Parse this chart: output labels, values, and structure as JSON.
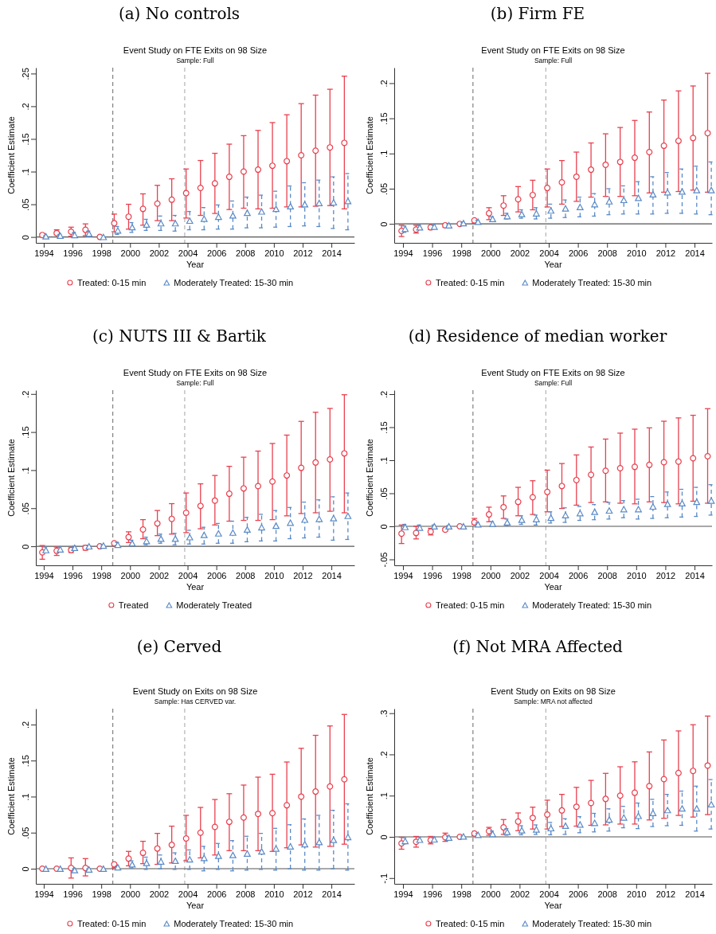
{
  "chart_data": [
    {
      "type": "scatter",
      "title": "(a) No controls",
      "subtitle": "Event Study on FTE Exits on 98 Size",
      "annotations": [
        "Sample: Full"
      ],
      "xlabel": "Year",
      "ylabel": "Coefficient Estimate",
      "xlim": [
        1993.45,
        2015.6
      ],
      "xticks": [
        1994,
        1996,
        1998,
        2000,
        2002,
        2004,
        2006,
        2008,
        2010,
        2012,
        2014
      ],
      "ylim": [
        -0.009,
        0.259
      ],
      "yticks": [
        {
          "value": 0,
          "label": "0"
        },
        {
          "value": 0.05,
          "label": ".05"
        },
        {
          "value": 0.1,
          "label": ".1"
        },
        {
          "value": 0.15,
          "label": ".15"
        },
        {
          "value": 0.2,
          "label": ".2"
        },
        {
          "value": 0.25,
          "label": ".25"
        }
      ],
      "grid": false,
      "legend": "bottom",
      "ref_lines": [
        {
          "axis": "x",
          "value": 1998.8,
          "color": "#808080",
          "line_style": "dashed"
        },
        {
          "axis": "x",
          "value": 2003.8,
          "color": "#b4b4b4",
          "line_style": "dashed"
        },
        {
          "axis": "y",
          "value": 0,
          "color": "#555555",
          "line_style": "solid"
        }
      ],
      "series": [
        {
          "name": "Treated: 0-15 min",
          "color": "#e8414f",
          "marker": "circle",
          "line_style": "solid",
          "x": [
            1993.9,
            1994.9,
            1995.9,
            1996.9,
            1997.9,
            1998.9,
            1999.9,
            2000.9,
            2001.9,
            2002.9,
            2003.9,
            2004.9,
            2005.9,
            2006.9,
            2007.9,
            2008.9,
            2009.9,
            2010.9,
            2011.9,
            2012.9,
            2013.9,
            2014.9
          ],
          "values": [
            0.003,
            0.006,
            0.008,
            0.011,
            0,
            0.021,
            0.031,
            0.043,
            0.051,
            0.057,
            0.067,
            0.075,
            0.082,
            0.092,
            0.1,
            0.103,
            0.109,
            0.116,
            0.125,
            0.132,
            0.137,
            0.144
          ],
          "errors": [
            [
              0,
              0.005
            ],
            [
              0.003,
              0.011
            ],
            [
              0.001,
              0.015
            ],
            [
              0.002,
              0.02
            ],
            null,
            [
              0.008,
              0.035
            ],
            [
              0.012,
              0.05
            ],
            [
              0.018,
              0.066
            ],
            [
              0.025,
              0.079
            ],
            [
              0.025,
              0.089
            ],
            [
              0.029,
              0.104
            ],
            [
              0.033,
              0.117
            ],
            [
              0.036,
              0.128
            ],
            [
              0.042,
              0.142
            ],
            [
              0.044,
              0.155
            ],
            [
              0.043,
              0.163
            ],
            [
              0.044,
              0.175
            ],
            [
              0.046,
              0.187
            ],
            [
              0.046,
              0.204
            ],
            [
              0.047,
              0.217
            ],
            [
              0.048,
              0.226
            ],
            [
              0.043,
              0.246
            ]
          ]
        },
        {
          "name": "Moderately Treated: 15-30 min",
          "color": "#5a8ac6",
          "marker": "triangle",
          "line_style": "dashed",
          "x": [
            1994.15,
            1995.15,
            1996.15,
            1997.15,
            1998.15,
            1999.15,
            2000.15,
            2001.15,
            2002.15,
            2003.15,
            2004.15,
            2005.15,
            2006.15,
            2007.15,
            2008.15,
            2009.15,
            2010.15,
            2011.15,
            2012.15,
            2013.15,
            2014.15,
            2015.15
          ],
          "values": [
            0.001,
            0.002,
            0.003,
            0.005,
            0,
            0.01,
            0.015,
            0.019,
            0.021,
            0.021,
            0.025,
            0.028,
            0.031,
            0.033,
            0.037,
            0.039,
            0.043,
            0.047,
            0.05,
            0.052,
            0.053,
            0.055
          ],
          "errors": [
            [
              0,
              0.002
            ],
            [
              0,
              0.004
            ],
            [
              0,
              0.007
            ],
            [
              0.001,
              0.009
            ],
            null,
            [
              0.004,
              0.016
            ],
            [
              0.007,
              0.022
            ],
            [
              0.01,
              0.027
            ],
            [
              0.01,
              0.032
            ],
            [
              0.009,
              0.033
            ],
            [
              0.011,
              0.039
            ],
            [
              0.011,
              0.045
            ],
            [
              0.012,
              0.049
            ],
            [
              0.012,
              0.055
            ],
            [
              0.014,
              0.061
            ],
            [
              0.014,
              0.064
            ],
            [
              0.015,
              0.07
            ],
            [
              0.016,
              0.078
            ],
            [
              0.017,
              0.083
            ],
            [
              0.016,
              0.087
            ],
            [
              0.013,
              0.092
            ],
            [
              0.011,
              0.097
            ]
          ]
        }
      ]
    },
    {
      "type": "scatter",
      "title": "(b) Firm FE",
      "subtitle": "Event Study on FTE Exits on 98 Size",
      "annotations": [
        "Sample: Full"
      ],
      "xlabel": "Year",
      "ylabel": "Coefficient Estimate",
      "xlim": [
        1993.4,
        2015.2
      ],
      "xticks": [
        1994,
        1996,
        1998,
        2000,
        2002,
        2004,
        2006,
        2008,
        2010,
        2012,
        2014
      ],
      "ylim": [
        -0.027,
        0.222
      ],
      "yticks": [
        {
          "value": 0,
          "label": "0"
        },
        {
          "value": 0.05,
          "label": ".05"
        },
        {
          "value": 0.1,
          "label": ".1"
        },
        {
          "value": 0.15,
          "label": ".15"
        },
        {
          "value": 0.2,
          "label": ".2"
        }
      ],
      "grid": false,
      "legend": "bottom",
      "ref_lines": [
        {
          "axis": "x",
          "value": 1998.8,
          "color": "#808080",
          "line_style": "dashed"
        },
        {
          "axis": "x",
          "value": 2003.8,
          "color": "#b4b4b4",
          "line_style": "dashed"
        },
        {
          "axis": "y",
          "value": 0,
          "color": "#555555",
          "line_style": "solid"
        }
      ],
      "series": [
        {
          "name": "Treated: 0-15 min",
          "color": "#e8414f",
          "marker": "circle",
          "line_style": "solid",
          "x": [
            1993.9,
            1994.9,
            1995.9,
            1996.9,
            1997.9,
            1998.9,
            1999.9,
            2000.9,
            2001.9,
            2002.9,
            2003.9,
            2004.9,
            2005.9,
            2006.9,
            2007.9,
            2008.9,
            2009.9,
            2010.9,
            2011.9,
            2012.9,
            2013.9,
            2014.9
          ],
          "values": [
            -0.01,
            -0.008,
            -0.005,
            -0.002,
            0,
            0.005,
            0.015,
            0.026,
            0.035,
            0.041,
            0.051,
            0.059,
            0.067,
            0.077,
            0.084,
            0.088,
            0.094,
            0.102,
            0.111,
            0.118,
            0.122,
            0.129
          ],
          "errors": [
            [
              -0.018,
              -0.002
            ],
            [
              -0.013,
              -0.002
            ],
            [
              -0.008,
              -0.003
            ],
            [
              -0.005,
              0
            ],
            null,
            [
              0.001,
              0.006
            ],
            [
              0.006,
              0.023
            ],
            [
              0.012,
              0.04
            ],
            [
              0.017,
              0.053
            ],
            [
              0.02,
              0.062
            ],
            [
              0.024,
              0.078
            ],
            [
              0.028,
              0.09
            ],
            [
              0.032,
              0.102
            ],
            [
              0.038,
              0.115
            ],
            [
              0.039,
              0.128
            ],
            [
              0.039,
              0.137
            ],
            [
              0.04,
              0.147
            ],
            [
              0.044,
              0.159
            ],
            [
              0.045,
              0.176
            ],
            [
              0.046,
              0.189
            ],
            [
              0.048,
              0.196
            ],
            [
              0.045,
              0.214
            ]
          ]
        },
        {
          "name": "Moderately Treated: 15-30 min",
          "color": "#5a8ac6",
          "marker": "triangle",
          "line_style": "dashed",
          "x": [
            1994.15,
            1995.15,
            1996.15,
            1997.15,
            1998.15,
            1999.15,
            2000.15,
            2001.15,
            2002.15,
            2003.15,
            2004.15,
            2005.15,
            2006.15,
            2007.15,
            2008.15,
            2009.15,
            2010.15,
            2011.15,
            2012.15,
            2013.15,
            2014.15,
            2015.15
          ],
          "values": [
            -0.007,
            -0.005,
            -0.004,
            -0.002,
            0.001,
            0.003,
            0.007,
            0.011,
            0.014,
            0.015,
            0.019,
            0.022,
            0.024,
            0.028,
            0.032,
            0.034,
            0.037,
            0.042,
            0.045,
            0.046,
            0.048,
            0.048
          ],
          "errors": [
            [
              -0.012,
              -0.003
            ],
            [
              -0.008,
              -0.002
            ],
            [
              -0.006,
              -0.002
            ],
            [
              -0.003,
              0
            ],
            [
              0,
              0.002
            ],
            [
              0.001,
              0.005
            ],
            [
              0.005,
              0.01
            ],
            [
              0.007,
              0.015
            ],
            [
              0.008,
              0.02
            ],
            [
              0.007,
              0.023
            ],
            [
              0.008,
              0.028
            ],
            [
              0.009,
              0.034
            ],
            [
              0.01,
              0.038
            ],
            [
              0.011,
              0.043
            ],
            [
              0.013,
              0.05
            ],
            [
              0.014,
              0.054
            ],
            [
              0.014,
              0.06
            ],
            [
              0.014,
              0.067
            ],
            [
              0.015,
              0.073
            ],
            [
              0.015,
              0.078
            ],
            [
              0.014,
              0.082
            ],
            [
              0.013,
              0.088
            ]
          ]
        }
      ]
    },
    {
      "type": "scatter",
      "title": "(c) NUTS III & Bartik",
      "subtitle": "Event Study on FTE Exits on 98 Size",
      "annotations": [
        "Sample: Full"
      ],
      "xlabel": "Year",
      "ylabel": "Coefficient Estimate",
      "xlim": [
        1993.45,
        2015.6
      ],
      "xticks": [
        1994,
        1996,
        1998,
        2000,
        2002,
        2004,
        2006,
        2008,
        2010,
        2012,
        2014
      ],
      "ylim": [
        -0.025,
        0.205
      ],
      "yticks": [
        {
          "value": 0,
          "label": "0"
        },
        {
          "value": 0.05,
          "label": ".05"
        },
        {
          "value": 0.1,
          "label": ".1"
        },
        {
          "value": 0.15,
          "label": ".15"
        },
        {
          "value": 0.2,
          "label": ".2"
        }
      ],
      "grid": false,
      "legend": "bottom",
      "ref_lines": [
        {
          "axis": "x",
          "value": 1998.8,
          "color": "#808080",
          "line_style": "dashed"
        },
        {
          "axis": "x",
          "value": 2003.8,
          "color": "#b4b4b4",
          "line_style": "dashed"
        },
        {
          "axis": "y",
          "value": 0,
          "color": "#555555",
          "line_style": "solid"
        }
      ],
      "series": [
        {
          "name": "Treated",
          "color": "#e8414f",
          "marker": "circle",
          "line_style": "solid",
          "x": [
            1993.9,
            1994.9,
            1995.9,
            1996.9,
            1997.9,
            1998.9,
            1999.9,
            2000.9,
            2001.9,
            2002.9,
            2003.9,
            2004.9,
            2005.9,
            2006.9,
            2007.9,
            2008.9,
            2009.9,
            2010.9,
            2011.9,
            2012.9,
            2013.9,
            2014.9
          ],
          "values": [
            -0.008,
            -0.006,
            -0.005,
            -0.002,
            0,
            0.004,
            0.012,
            0.022,
            0.03,
            0.036,
            0.044,
            0.053,
            0.06,
            0.069,
            0.076,
            0.079,
            0.085,
            0.093,
            0.103,
            0.11,
            0.114,
            0.122
          ],
          "errors": [
            [
              -0.017,
              0.001
            ],
            [
              -0.012,
              -0.001
            ],
            [
              -0.008,
              -0.002
            ],
            [
              -0.005,
              0.001
            ],
            null,
            [
              0.001,
              0.005
            ],
            [
              0.005,
              0.019
            ],
            [
              0.01,
              0.035
            ],
            [
              0.014,
              0.047
            ],
            [
              0.016,
              0.056
            ],
            [
              0.018,
              0.07
            ],
            [
              0.023,
              0.082
            ],
            [
              0.028,
              0.093
            ],
            [
              0.033,
              0.105
            ],
            [
              0.034,
              0.117
            ],
            [
              0.034,
              0.125
            ],
            [
              0.035,
              0.135
            ],
            [
              0.04,
              0.146
            ],
            [
              0.043,
              0.164
            ],
            [
              0.044,
              0.176
            ],
            [
              0.046,
              0.181
            ],
            [
              0.044,
              0.199
            ]
          ]
        },
        {
          "name": "Moderately Treated",
          "color": "#5a8ac6",
          "marker": "triangle",
          "line_style": "dashed",
          "x": [
            1994.15,
            1995.15,
            1996.15,
            1997.15,
            1998.15,
            1999.15,
            2000.15,
            2001.15,
            2002.15,
            2003.15,
            2004.15,
            2005.15,
            2006.15,
            2007.15,
            2008.15,
            2009.15,
            2010.15,
            2011.15,
            2012.15,
            2013.15,
            2014.15,
            2015.15
          ],
          "values": [
            -0.005,
            -0.004,
            -0.002,
            0,
            0.001,
            0.002,
            0.004,
            0.007,
            0.01,
            0.01,
            0.012,
            0.015,
            0.017,
            0.018,
            0.022,
            0.025,
            0.027,
            0.031,
            0.035,
            0.036,
            0.037,
            0.04
          ],
          "errors": [
            [
              -0.008,
              -0.001
            ],
            [
              -0.006,
              -0.001
            ],
            [
              -0.004,
              0
            ],
            [
              -0.002,
              0.001
            ],
            [
              0,
              0.002
            ],
            [
              0.001,
              0.005
            ],
            [
              0.002,
              0.008
            ],
            [
              0.002,
              0.012
            ],
            [
              0.004,
              0.016
            ],
            [
              0.002,
              0.017
            ],
            [
              0.003,
              0.021
            ],
            [
              0.003,
              0.025
            ],
            [
              0.004,
              0.03
            ],
            [
              0.004,
              0.033
            ],
            [
              0.006,
              0.038
            ],
            [
              0.007,
              0.042
            ],
            [
              0.007,
              0.047
            ],
            [
              0.01,
              0.051
            ],
            [
              0.011,
              0.058
            ],
            [
              0.012,
              0.061
            ],
            [
              0.008,
              0.065
            ],
            [
              0.009,
              0.07
            ]
          ]
        }
      ]
    },
    {
      "type": "scatter",
      "title": "(d) Residence of median worker",
      "subtitle": "Event Study on FTE Exits on 98 Size",
      "annotations": [
        "Sample: Full"
      ],
      "xlabel": "Year",
      "ylabel": "Coefficient Estimate",
      "xlim": [
        1993.4,
        2015.2
      ],
      "xticks": [
        1994,
        1996,
        1998,
        2000,
        2002,
        2004,
        2006,
        2008,
        2010,
        2012,
        2014
      ],
      "ylim": [
        -0.059,
        0.206
      ],
      "yticks": [
        {
          "value": -0.05,
          "label": "-.05"
        },
        {
          "value": 0,
          "label": "0"
        },
        {
          "value": 0.05,
          "label": ".05"
        },
        {
          "value": 0.1,
          "label": ".1"
        },
        {
          "value": 0.15,
          "label": ".15"
        },
        {
          "value": 0.2,
          "label": ".2"
        }
      ],
      "grid": false,
      "legend": "bottom",
      "ref_lines": [
        {
          "axis": "x",
          "value": 1998.8,
          "color": "#808080",
          "line_style": "dashed"
        },
        {
          "axis": "x",
          "value": 2003.8,
          "color": "#b4b4b4",
          "line_style": "dashed"
        },
        {
          "axis": "y",
          "value": 0,
          "color": "#555555",
          "line_style": "solid"
        }
      ],
      "series": [
        {
          "name": "Treated: 0-15 min",
          "color": "#e8414f",
          "marker": "circle",
          "line_style": "solid",
          "x": [
            1993.9,
            1994.9,
            1995.9,
            1996.9,
            1997.9,
            1998.9,
            1999.9,
            2000.9,
            2001.9,
            2002.9,
            2003.9,
            2004.9,
            2005.9,
            2006.9,
            2007.9,
            2008.9,
            2009.9,
            2010.9,
            2011.9,
            2012.9,
            2013.9,
            2014.9
          ],
          "values": [
            -0.011,
            -0.01,
            -0.008,
            -0.005,
            0,
            0.006,
            0.018,
            0.029,
            0.037,
            0.044,
            0.052,
            0.061,
            0.07,
            0.078,
            0.084,
            0.088,
            0.09,
            0.093,
            0.097,
            0.098,
            0.103,
            0.106
          ],
          "errors": [
            [
              -0.026,
              0.002
            ],
            [
              -0.019,
              0
            ],
            [
              -0.013,
              -0.003
            ],
            [
              -0.007,
              -0.003
            ],
            null,
            [
              0.003,
              0.012
            ],
            [
              0.007,
              0.029
            ],
            [
              0.012,
              0.046
            ],
            [
              0.016,
              0.059
            ],
            [
              0.018,
              0.069
            ],
            [
              0.022,
              0.085
            ],
            [
              0.027,
              0.095
            ],
            [
              0.032,
              0.108
            ],
            [
              0.036,
              0.12
            ],
            [
              0.037,
              0.132
            ],
            [
              0.035,
              0.141
            ],
            [
              0.034,
              0.147
            ],
            [
              0.037,
              0.149
            ],
            [
              0.036,
              0.159
            ],
            [
              0.034,
              0.164
            ],
            [
              0.038,
              0.168
            ],
            [
              0.035,
              0.178
            ]
          ]
        },
        {
          "name": "Moderately Treated: 15-30 min",
          "color": "#5a8ac6",
          "marker": "triangle",
          "line_style": "dashed",
          "x": [
            1994.15,
            1995.15,
            1996.15,
            1997.15,
            1998.15,
            1999.15,
            2000.15,
            2001.15,
            2002.15,
            2003.15,
            2004.15,
            2005.15,
            2006.15,
            2007.15,
            2008.15,
            2009.15,
            2010.15,
            2011.15,
            2012.15,
            2013.15,
            2014.15,
            2015.15
          ],
          "values": [
            -0.001,
            -0.002,
            0,
            0,
            0,
            0.003,
            0.004,
            0.006,
            0.01,
            0.011,
            0.013,
            0.017,
            0.02,
            0.022,
            0.024,
            0.026,
            0.026,
            0.03,
            0.034,
            0.035,
            0.037,
            0.039
          ],
          "errors": [
            [
              -0.004,
              0.003
            ],
            [
              -0.004,
              0.002
            ],
            [
              -0.002,
              0.002
            ],
            [
              -0.001,
              0.001
            ],
            null,
            [
              0.001,
              0.005
            ],
            [
              0.001,
              0.007
            ],
            [
              0.001,
              0.011
            ],
            [
              0.003,
              0.016
            ],
            [
              0.002,
              0.017
            ],
            [
              0.005,
              0.022
            ],
            [
              0.006,
              0.028
            ],
            [
              0.009,
              0.03
            ],
            [
              0.01,
              0.033
            ],
            [
              0.011,
              0.036
            ],
            [
              0.013,
              0.039
            ],
            [
              0.011,
              0.041
            ],
            [
              0.012,
              0.045
            ],
            [
              0.013,
              0.052
            ],
            [
              0.014,
              0.056
            ],
            [
              0.015,
              0.059
            ],
            [
              0.017,
              0.063
            ]
          ]
        }
      ]
    },
    {
      "type": "scatter",
      "title": "(e) Cerved",
      "subtitle": "Event Study on Exits on 98 Size",
      "annotations": [
        "Sample: Has CERVED var."
      ],
      "xlabel": "Year",
      "ylabel": "Coefficient Estimate",
      "xlim": [
        1993.45,
        2015.6
      ],
      "xticks": [
        1994,
        1996,
        1998,
        2000,
        2002,
        2004,
        2006,
        2008,
        2010,
        2012,
        2014
      ],
      "ylim": [
        -0.021,
        0.222
      ],
      "yticks": [
        {
          "value": 0,
          "label": "0"
        },
        {
          "value": 0.05,
          "label": ".05"
        },
        {
          "value": 0.1,
          "label": ".1"
        },
        {
          "value": 0.15,
          "label": ".15"
        },
        {
          "value": 0.2,
          "label": ".2"
        }
      ],
      "grid": false,
      "legend": "bottom",
      "ref_lines": [
        {
          "axis": "x",
          "value": 1998.8,
          "color": "#808080",
          "line_style": "dashed"
        },
        {
          "axis": "x",
          "value": 2003.8,
          "color": "#b4b4b4",
          "line_style": "dashed"
        },
        {
          "axis": "y",
          "value": 0,
          "color": "#555555",
          "line_style": "solid"
        }
      ],
      "series": [
        {
          "name": "Treated: 0-15 min",
          "color": "#e8414f",
          "marker": "circle",
          "line_style": "solid",
          "x": [
            1993.9,
            1994.9,
            1995.9,
            1996.9,
            1997.9,
            1998.9,
            1999.9,
            2000.9,
            2001.9,
            2002.9,
            2003.9,
            2004.9,
            2005.9,
            2006.9,
            2007.9,
            2008.9,
            2009.9,
            2010.9,
            2011.9,
            2012.9,
            2013.9,
            2014.9
          ],
          "values": [
            0,
            0,
            0.001,
            0.001,
            0,
            0.006,
            0.014,
            0.022,
            0.028,
            0.033,
            0.042,
            0.05,
            0.058,
            0.065,
            0.071,
            0.076,
            0.077,
            0.088,
            0.1,
            0.107,
            0.114,
            0.124
          ],
          "errors": [
            null,
            null,
            [
              -0.013,
              0.015
            ],
            [
              -0.01,
              0.014
            ],
            null,
            [
              0.001,
              0.008
            ],
            [
              0.004,
              0.024
            ],
            [
              0.007,
              0.038
            ],
            [
              0.006,
              0.049
            ],
            [
              0.008,
              0.059
            ],
            [
              0.011,
              0.074
            ],
            [
              0.015,
              0.085
            ],
            [
              0.019,
              0.096
            ],
            [
              0.025,
              0.104
            ],
            [
              0.025,
              0.116
            ],
            [
              0.025,
              0.127
            ],
            [
              0.024,
              0.131
            ],
            [
              0.029,
              0.148
            ],
            [
              0.033,
              0.167
            ],
            [
              0.03,
              0.185
            ],
            [
              0.031,
              0.198
            ],
            [
              0.034,
              0.214
            ]
          ]
        },
        {
          "name": "Moderately Treated: 15-30 min",
          "color": "#5a8ac6",
          "marker": "triangle",
          "line_style": "dashed",
          "x": [
            1994.15,
            1995.15,
            1996.15,
            1997.15,
            1998.15,
            1999.15,
            2000.15,
            2001.15,
            2002.15,
            2003.15,
            2004.15,
            2005.15,
            2006.15,
            2007.15,
            2008.15,
            2009.15,
            2010.15,
            2011.15,
            2012.15,
            2013.15,
            2014.15,
            2015.15
          ],
          "values": [
            0,
            0,
            -0.002,
            -0.001,
            0,
            0.002,
            0.006,
            0.008,
            0.01,
            0.011,
            0.013,
            0.015,
            0.018,
            0.019,
            0.021,
            0.024,
            0.028,
            0.031,
            0.034,
            0.037,
            0.04,
            0.044
          ],
          "errors": [
            null,
            null,
            [
              -0.003,
              0
            ],
            [
              -0.002,
              0
            ],
            null,
            [
              0,
              0.004
            ],
            [
              0.001,
              0.011
            ],
            [
              -0.001,
              0.016
            ],
            [
              0,
              0.019
            ],
            [
              -0.001,
              0.022
            ],
            [
              -0.001,
              0.026
            ],
            [
              -0.003,
              0.031
            ],
            [
              -0.001,
              0.035
            ],
            [
              -0.003,
              0.039
            ],
            [
              -0.002,
              0.045
            ],
            [
              -0.001,
              0.049
            ],
            [
              -0.002,
              0.056
            ],
            [
              0,
              0.061
            ],
            [
              -0.002,
              0.069
            ],
            [
              -0.002,
              0.074
            ],
            [
              0,
              0.081
            ],
            [
              -0.002,
              0.09
            ]
          ]
        }
      ]
    },
    {
      "type": "scatter",
      "title": "(f) Not MRA Affected",
      "subtitle": "Event Study on Exits on 98 Size",
      "annotations": [
        "Sample: MRA not affected"
      ],
      "xlabel": "Year",
      "ylabel": "Coefficient Estimate",
      "xlim": [
        1993.4,
        2015.2
      ],
      "xticks": [
        1994,
        1996,
        1998,
        2000,
        2002,
        2004,
        2006,
        2008,
        2010,
        2012,
        2014
      ],
      "ylim": [
        -0.114,
        0.311
      ],
      "yticks": [
        {
          "value": -0.1,
          "label": "-.1"
        },
        {
          "value": 0,
          "label": "0"
        },
        {
          "value": 0.1,
          "label": ".1"
        },
        {
          "value": 0.2,
          "label": ".2"
        },
        {
          "value": 0.3,
          "label": ".3"
        }
      ],
      "grid": false,
      "legend": "bottom",
      "ref_lines": [
        {
          "axis": "x",
          "value": 1998.8,
          "color": "#808080",
          "line_style": "dashed"
        },
        {
          "axis": "x",
          "value": 2003.8,
          "color": "#b4b4b4",
          "line_style": "dashed"
        },
        {
          "axis": "y",
          "value": 0,
          "color": "#555555",
          "line_style": "solid"
        }
      ],
      "series": [
        {
          "name": "Treated: 0-15 min",
          "color": "#e8414f",
          "marker": "circle",
          "line_style": "solid",
          "x": [
            1993.9,
            1994.9,
            1995.9,
            1996.9,
            1997.9,
            1998.9,
            1999.9,
            2000.9,
            2001.9,
            2002.9,
            2003.9,
            2004.9,
            2005.9,
            2006.9,
            2007.9,
            2008.9,
            2009.9,
            2010.9,
            2011.9,
            2012.9,
            2013.9,
            2014.9
          ],
          "values": [
            -0.016,
            -0.012,
            -0.008,
            -0.001,
            0,
            0.008,
            0.014,
            0.023,
            0.037,
            0.046,
            0.054,
            0.064,
            0.073,
            0.082,
            0.092,
            0.1,
            0.107,
            0.123,
            0.14,
            0.155,
            0.16,
            0.173
          ],
          "errors": [
            [
              -0.03,
              -0.001
            ],
            [
              -0.025,
              0.001
            ],
            [
              -0.017,
              0.001
            ],
            [
              -0.011,
              0.009
            ],
            null,
            [
              0.003,
              0.01
            ],
            [
              0.004,
              0.023
            ],
            [
              0.006,
              0.042
            ],
            [
              0.015,
              0.058
            ],
            [
              0.019,
              0.072
            ],
            [
              0.019,
              0.089
            ],
            [
              0.025,
              0.103
            ],
            [
              0.026,
              0.12
            ],
            [
              0.028,
              0.137
            ],
            [
              0.029,
              0.154
            ],
            [
              0.031,
              0.17
            ],
            [
              0.031,
              0.182
            ],
            [
              0.041,
              0.206
            ],
            [
              0.045,
              0.235
            ],
            [
              0.052,
              0.257
            ],
            [
              0.048,
              0.272
            ],
            [
              0.054,
              0.293
            ]
          ]
        },
        {
          "name": "Moderately Treated: 15-30 min",
          "color": "#5a8ac6",
          "marker": "triangle",
          "line_style": "dashed",
          "x": [
            1994.15,
            1995.15,
            1996.15,
            1997.15,
            1998.15,
            1999.15,
            2000.15,
            2001.15,
            2002.15,
            2003.15,
            2004.15,
            2005.15,
            2006.15,
            2007.15,
            2008.15,
            2009.15,
            2010.15,
            2011.15,
            2012.15,
            2013.15,
            2014.15,
            2015.15
          ],
          "values": [
            -0.01,
            -0.007,
            -0.006,
            -0.002,
            0.001,
            0.005,
            0.007,
            0.012,
            0.016,
            0.018,
            0.021,
            0.027,
            0.03,
            0.034,
            0.042,
            0.047,
            0.051,
            0.058,
            0.065,
            0.069,
            0.069,
            0.079
          ],
          "errors": [
            [
              -0.017,
              -0.002
            ],
            [
              -0.012,
              -0.001
            ],
            [
              -0.01,
              -0.001
            ],
            [
              -0.004,
              0.001
            ],
            [
              0,
              0.002
            ],
            [
              0.001,
              0.008
            ],
            [
              0.002,
              0.014
            ],
            [
              0.004,
              0.02
            ],
            [
              0.005,
              0.027
            ],
            [
              0.006,
              0.029
            ],
            [
              0.005,
              0.035
            ],
            [
              0.006,
              0.044
            ],
            [
              0.01,
              0.049
            ],
            [
              0.012,
              0.057
            ],
            [
              0.014,
              0.068
            ],
            [
              0.022,
              0.074
            ],
            [
              0.02,
              0.082
            ],
            [
              0.025,
              0.091
            ],
            [
              0.027,
              0.103
            ],
            [
              0.028,
              0.111
            ],
            [
              0.014,
              0.123
            ],
            [
              0.019,
              0.139
            ]
          ]
        }
      ]
    }
  ]
}
